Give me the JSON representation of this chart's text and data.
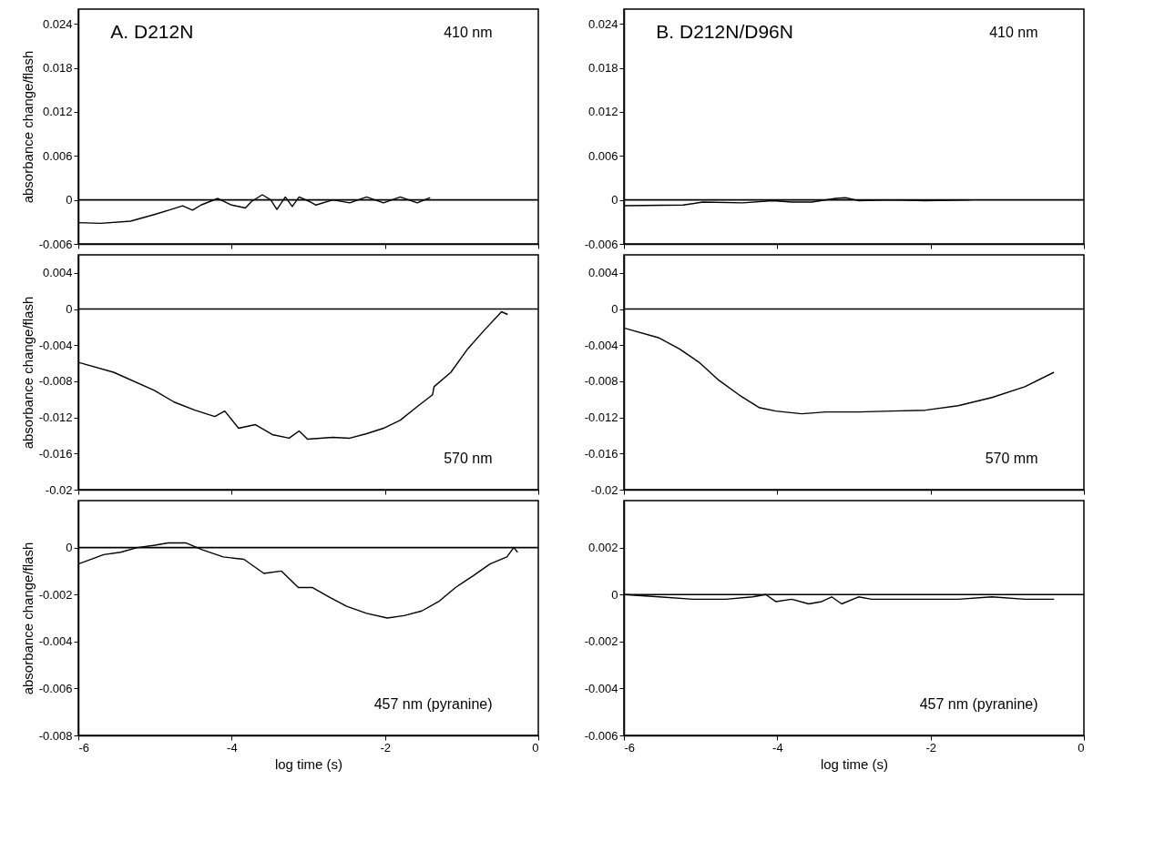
{
  "chart_data": [
    {
      "type": "line",
      "ylabel": "absorbance change/flash",
      "annotations": [
        "A. D212N",
        "410 nm"
      ],
      "tick_labels": "y",
      "xlim": [
        -6,
        0
      ],
      "xticks": [
        -6,
        -4,
        -2,
        0
      ],
      "ylim": [
        -0.006,
        0.026
      ],
      "yticks": [
        -0.006,
        0,
        0.006,
        0.012,
        0.018,
        0.024
      ],
      "ref_lines": [
        {
          "axis": "y",
          "value": 0
        }
      ],
      "color": "#000000",
      "x": [
        -6,
        -5.71,
        -5.32,
        -5.01,
        -4.79,
        -4.64,
        -4.51,
        -4.4,
        -4.18,
        -4.0,
        -3.82,
        -3.74,
        -3.6,
        -3.49,
        -3.41,
        -3.3,
        -3.21,
        -3.12,
        -2.99,
        -2.9,
        -2.68,
        -2.46,
        -2.24,
        -2.02,
        -1.8,
        -1.58,
        -1.41
      ],
      "values": [
        -0.0031,
        -0.0032,
        -0.0029,
        -0.002,
        -0.0013,
        -0.0008,
        -0.0014,
        -0.0007,
        0.0002,
        -0.0007,
        -0.0011,
        -0.0002,
        0.0007,
        0,
        -0.0013,
        0.0004,
        -0.0009,
        0.0004,
        -0.0002,
        -0.0007,
        0,
        -0.0004,
        0.0004,
        -0.0004,
        0.0004,
        -0.0004,
        0.0003
      ]
    },
    {
      "type": "line",
      "annotations": [
        "B. D212N/D96N",
        "410 nm"
      ],
      "tick_labels": "y",
      "xlim": [
        -6,
        0
      ],
      "xticks": [
        -6,
        -4,
        -2,
        0
      ],
      "ylim": [
        -0.006,
        0.026
      ],
      "yticks": [
        -0.006,
        0,
        0.006,
        0.012,
        0.018,
        0.024
      ],
      "ref_lines": [
        {
          "axis": "y",
          "value": 0
        }
      ],
      "color": "#000000",
      "x": [
        -6,
        -5.23,
        -4.97,
        -4.45,
        -4.06,
        -3.81,
        -3.55,
        -3.24,
        -3.11,
        -2.94,
        -2.51,
        -2.07,
        -1.47
      ],
      "values": [
        -0.0008,
        -0.0007,
        -0.0003,
        -0.0004,
        -0.0001,
        -0.0003,
        -0.0003,
        0.0002,
        0.0003,
        -0.0001,
        0,
        -0.0001,
        0
      ]
    },
    {
      "type": "line",
      "ylabel": "absorbance change/flash",
      "annotations": [
        "570 nm"
      ],
      "tick_labels": "y",
      "xlim": [
        -6,
        0
      ],
      "xticks": [
        -6,
        -4,
        -2,
        0
      ],
      "ylim": [
        -0.02,
        0.006
      ],
      "yticks": [
        -0.02,
        -0.016,
        -0.012,
        -0.008,
        -0.004,
        0,
        0.004
      ],
      "ref_lines": [
        {
          "axis": "y",
          "value": 0
        }
      ],
      "color": "#000000",
      "x": [
        -6,
        -5.54,
        -5.01,
        -4.75,
        -4.48,
        -4.22,
        -4.09,
        -3.91,
        -3.69,
        -3.47,
        -3.25,
        -3.12,
        -3.01,
        -2.68,
        -2.46,
        -2.24,
        -2.02,
        -1.8,
        -1.58,
        -1.38,
        -1.36,
        -1.14,
        -0.92,
        -0.7,
        -0.48,
        -0.4
      ],
      "values": [
        -0.0059,
        -0.007,
        -0.009,
        -0.0103,
        -0.0112,
        -0.0119,
        -0.0113,
        -0.0132,
        -0.0128,
        -0.0139,
        -0.0143,
        -0.0135,
        -0.0144,
        -0.0142,
        -0.0143,
        -0.0138,
        -0.0132,
        -0.0123,
        -0.0108,
        -0.0095,
        -0.0086,
        -0.007,
        -0.0044,
        -0.0023,
        -0.0003,
        -0.0006
      ]
    },
    {
      "type": "line",
      "annotations": [
        "570 mm"
      ],
      "tick_labels": "y",
      "xlim": [
        -6,
        0
      ],
      "xticks": [
        -6,
        -4,
        -2,
        0
      ],
      "ylim": [
        -0.02,
        0.006
      ],
      "yticks": [
        -0.02,
        -0.016,
        -0.012,
        -0.008,
        -0.004,
        0,
        0.004
      ],
      "ref_lines": [
        {
          "axis": "y",
          "value": 0
        }
      ],
      "color": "#000000",
      "x": [
        -6,
        -5.54,
        -5.28,
        -5.02,
        -4.76,
        -4.5,
        -4.24,
        -4.02,
        -3.68,
        -3.37,
        -2.94,
        -2.51,
        -2.07,
        -1.64,
        -1.2,
        -0.77,
        -0.39
      ],
      "values": [
        -0.0021,
        -0.0032,
        -0.0044,
        -0.0059,
        -0.0079,
        -0.0095,
        -0.0109,
        -0.0113,
        -0.0116,
        -0.0114,
        -0.0114,
        -0.0113,
        -0.0112,
        -0.0107,
        -0.0098,
        -0.0086,
        -0.007
      ]
    },
    {
      "type": "line",
      "ylabel": "absorbance change/flash",
      "xlabel": "log time (s)",
      "annotations": [
        "457 nm (pyranine)"
      ],
      "xlim": [
        -6,
        0
      ],
      "xticks": [
        -6,
        -4,
        -2,
        0
      ],
      "ylim": [
        -0.008,
        0.002
      ],
      "yticks": [
        -0.008,
        -0.006,
        -0.004,
        -0.002,
        0
      ],
      "ref_lines": [
        {
          "axis": "y",
          "value": 0
        }
      ],
      "color": "#000000",
      "x": [
        -6,
        -5.67,
        -5.45,
        -5.23,
        -5.0,
        -4.83,
        -4.6,
        -4.38,
        -4.11,
        -3.84,
        -3.58,
        -3.35,
        -3.13,
        -2.95,
        -2.73,
        -2.5,
        -2.24,
        -1.97,
        -1.75,
        -1.52,
        -1.3,
        -1.08,
        -0.85,
        -0.63,
        -0.41,
        -0.32,
        -0.27
      ],
      "values": [
        -0.0007,
        -0.0003,
        -0.0002,
        0,
        0.0001,
        0.0002,
        0.0002,
        -0.0001,
        -0.0004,
        -0.0005,
        -0.0011,
        -0.001,
        -0.0017,
        -0.0017,
        -0.0021,
        -0.0025,
        -0.0028,
        -0.003,
        -0.0029,
        -0.0027,
        -0.0023,
        -0.0017,
        -0.0012,
        -0.0007,
        -0.0004,
        0,
        -0.0002
      ]
    },
    {
      "type": "line",
      "xlabel": "log time (s)",
      "annotations": [
        "457 nm (pyranine)"
      ],
      "xlim": [
        -6,
        0
      ],
      "xticks": [
        -6,
        -4,
        -2,
        0
      ],
      "ylim": [
        -0.006,
        0.004
      ],
      "yticks": [
        -0.006,
        -0.004,
        -0.002,
        0,
        0.002
      ],
      "ref_lines": [
        {
          "axis": "y",
          "value": 0
        }
      ],
      "color": "#000000",
      "x": [
        -6,
        -5.54,
        -5.1,
        -4.67,
        -4.32,
        -4.15,
        -4.02,
        -3.81,
        -3.59,
        -3.42,
        -3.29,
        -3.16,
        -2.94,
        -2.77,
        -2.51,
        -2.07,
        -1.64,
        -1.2,
        -0.77,
        -0.39
      ],
      "values": [
        0,
        -0.0001,
        -0.0002,
        -0.0002,
        -0.0001,
        0,
        -0.0003,
        -0.0002,
        -0.0004,
        -0.0003,
        -0.0001,
        -0.0004,
        -0.0001,
        -0.0002,
        -0.0002,
        -0.0002,
        -0.0002,
        -0.0001,
        -0.0002,
        -0.0002
      ]
    }
  ]
}
